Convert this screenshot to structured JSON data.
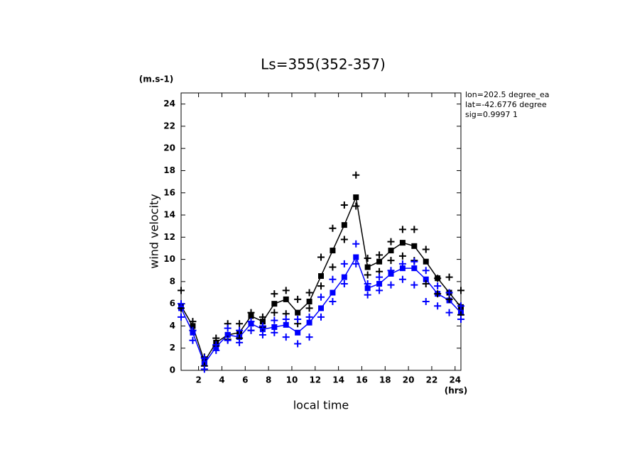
{
  "chart_data": {
    "type": "line",
    "title": "Ls=355(352-357)",
    "y_unit": "(m.s-1)",
    "x_unit": "(hrs)",
    "ylabel": "wind velocity",
    "xlabel": "local time",
    "annotations": [
      "lon=202.5 degree_ea",
      "lat=-42.6776 degree",
      "sig=0.9997 1"
    ],
    "xlim": [
      0.5,
      24.5
    ],
    "ylim": [
      0,
      25
    ],
    "xticks": [
      2,
      4,
      6,
      8,
      10,
      12,
      14,
      16,
      18,
      20,
      22,
      24
    ],
    "yticks": [
      0,
      2,
      4,
      6,
      8,
      10,
      12,
      14,
      16,
      18,
      20,
      22,
      24
    ],
    "grid": false,
    "x": [
      0.5,
      1.5,
      2.5,
      3.5,
      4.5,
      5.5,
      6.5,
      7.5,
      8.5,
      9.5,
      10.5,
      11.5,
      12.5,
      13.5,
      14.5,
      15.5,
      16.5,
      17.5,
      18.5,
      19.5,
      20.5,
      21.5,
      22.5,
      23.5,
      24.5
    ],
    "series": [
      {
        "color": "#000000",
        "marker": "square",
        "line": true,
        "values": [
          5.8,
          4.0,
          0.8,
          2.5,
          3.2,
          3.4,
          4.9,
          4.4,
          6.0,
          6.4,
          5.2,
          6.2,
          8.5,
          10.8,
          13.1,
          15.6,
          9.3,
          9.8,
          10.8,
          11.5,
          11.2,
          9.8,
          8.3,
          7.0,
          5.7
        ]
      },
      {
        "color": "#0000ff",
        "marker": "square",
        "line": true,
        "values": [
          5.6,
          3.4,
          0.6,
          2.1,
          3.2,
          3.0,
          4.2,
          3.7,
          3.9,
          4.1,
          3.4,
          4.3,
          5.6,
          7.0,
          8.4,
          10.2,
          7.4,
          7.8,
          8.7,
          9.2,
          9.2,
          8.2,
          6.9,
          6.3,
          5.2
        ]
      },
      {
        "color": "#000000",
        "marker": "plus",
        "line": false,
        "values": [
          7.2,
          4.4,
          1.2,
          2.9,
          4.2,
          4.2,
          5.2,
          4.8,
          6.9,
          7.2,
          6.4,
          7.0,
          10.2,
          12.8,
          14.9,
          17.6,
          10.1,
          10.4,
          11.6,
          12.7,
          12.7,
          10.9,
          8.3,
          8.4,
          7.2
        ]
      },
      {
        "color": "#000000",
        "marker": "plus",
        "line": false,
        "values": [
          5.6,
          3.6,
          0.4,
          2.2,
          2.8,
          2.9,
          3.6,
          3.9,
          5.2,
          5.1,
          4.2,
          5.6,
          7.6,
          9.3,
          11.8,
          14.8,
          8.6,
          8.9,
          9.9,
          10.3,
          9.9,
          7.8,
          6.9,
          6.4,
          5.0
        ]
      },
      {
        "color": "#0000ff",
        "marker": "plus",
        "line": false,
        "values": [
          6.0,
          3.6,
          1.1,
          2.3,
          3.8,
          3.6,
          4.4,
          4.0,
          4.5,
          4.6,
          4.6,
          4.8,
          6.6,
          8.2,
          9.6,
          11.4,
          7.8,
          8.4,
          9.0,
          9.6,
          9.8,
          9.0,
          7.6,
          7.0,
          5.8
        ]
      },
      {
        "color": "#0000ff",
        "marker": "plus",
        "line": false,
        "values": [
          4.8,
          2.7,
          0.1,
          1.8,
          2.7,
          2.5,
          3.6,
          3.2,
          3.4,
          3.0,
          2.4,
          3.0,
          4.8,
          6.2,
          7.8,
          9.6,
          6.8,
          7.2,
          7.7,
          8.2,
          7.7,
          6.2,
          5.8,
          5.2,
          4.6
        ]
      }
    ]
  }
}
